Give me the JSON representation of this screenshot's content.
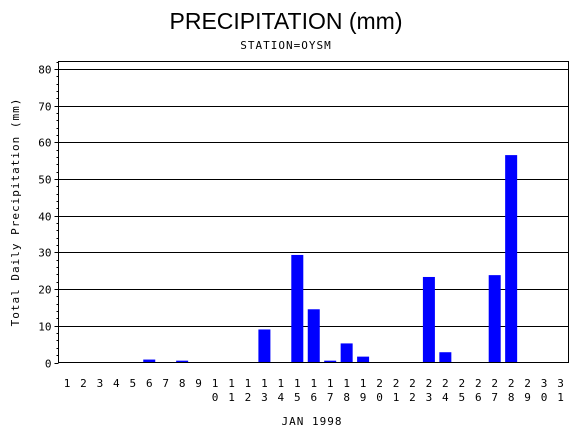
{
  "chart_data": {
    "type": "bar",
    "title": "PRECIPITATION (mm)",
    "subtitle": "STATION=OYSM",
    "xlabel": "JAN 1998",
    "ylabel": "Total Daily Precipitation (mm)",
    "ylim": [
      0,
      82
    ],
    "yticks": [
      0,
      10,
      20,
      30,
      40,
      50,
      60,
      70,
      80
    ],
    "grid": true,
    "bar_color": "#0000ff",
    "categories": [
      "1",
      "2",
      "3",
      "4",
      "5",
      "6",
      "7",
      "8",
      "9",
      "10",
      "11",
      "12",
      "13",
      "14",
      "15",
      "16",
      "17",
      "18",
      "19",
      "20",
      "21",
      "22",
      "23",
      "24",
      "25",
      "26",
      "27",
      "28",
      "29",
      "30",
      "31"
    ],
    "values": [
      0,
      0,
      0,
      0,
      0,
      0.8,
      0,
      0.5,
      0,
      0,
      0,
      0,
      9.0,
      0,
      29.3,
      14.5,
      0.5,
      5.2,
      1.6,
      0,
      0,
      0,
      23.3,
      2.8,
      0,
      0,
      23.8,
      56.5,
      0,
      0,
      0
    ]
  }
}
